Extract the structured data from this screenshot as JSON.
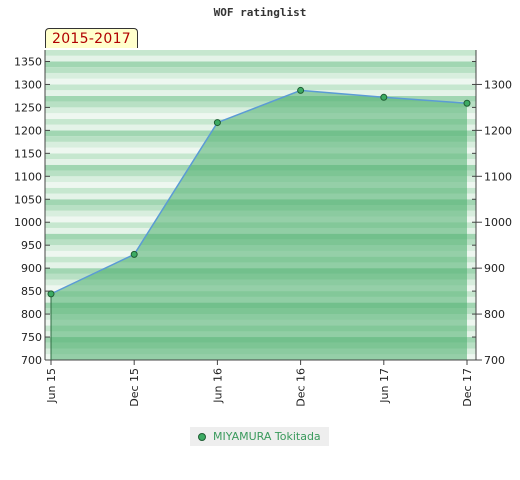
{
  "title": "WOF ratinglist",
  "period_badge": "2015-2017",
  "colors": {
    "line": "#5b9bd5",
    "area": "#4caf6e",
    "marker_fill": "#3cab63",
    "marker_stroke": "#1f5d33",
    "band_light": "#eef7f0",
    "band_dark": "#7cc497",
    "legend_text": "#3a9a5c"
  },
  "chart_data": {
    "type": "area",
    "title": "WOF ratinglist",
    "xlabel": "",
    "ylabel": "",
    "categories": [
      "Jun 15",
      "Dec 15",
      "Jun 16",
      "Dec 16",
      "Jun 17",
      "Dec 17"
    ],
    "series": [
      {
        "name": "MIYAMURA Tokitada",
        "values": [
          844,
          930,
          1217,
          1287,
          1272,
          1259
        ]
      }
    ],
    "ylim": [
      700,
      1375
    ],
    "y_ticks_left": [
      700,
      750,
      800,
      850,
      900,
      950,
      1000,
      1050,
      1100,
      1150,
      1200,
      1250,
      1300,
      1350
    ],
    "y_ticks_right": [
      700,
      800,
      900,
      1000,
      1100,
      1200,
      1300
    ],
    "grid": "horizontal bands",
    "legend_position": "bottom-center"
  },
  "legend": {
    "label": "MIYAMURA Tokitada"
  }
}
